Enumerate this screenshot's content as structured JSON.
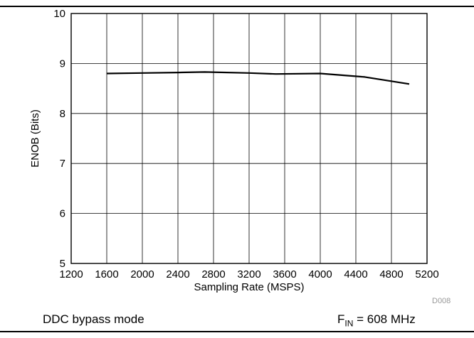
{
  "chart_data": {
    "type": "line",
    "title": "",
    "xlabel": "Sampling Rate (MSPS)",
    "ylabel": "ENOB (Bits)",
    "xlim": [
      1200,
      5200
    ],
    "ylim": [
      5,
      10
    ],
    "x_ticks": [
      "1200",
      "1600",
      "2000",
      "2400",
      "2800",
      "3200",
      "3600",
      "4000",
      "4400",
      "4800",
      "5200"
    ],
    "y_ticks": [
      "5",
      "6",
      "7",
      "8",
      "9",
      "10"
    ],
    "grid": true,
    "legend": "none",
    "series": [
      {
        "x": [
          1600,
          2000,
          2400,
          2700,
          3200,
          3500,
          4000,
          4500,
          5000
        ],
        "y": [
          8.8,
          8.81,
          8.82,
          8.83,
          8.81,
          8.79,
          8.8,
          8.73,
          8.59
        ],
        "color": "#000000"
      }
    ]
  },
  "code": "D008",
  "caption_left": "DDC bypass mode",
  "caption_right": {
    "prefix": "F",
    "subscript": "IN",
    "suffix": " = 608 MHz"
  }
}
